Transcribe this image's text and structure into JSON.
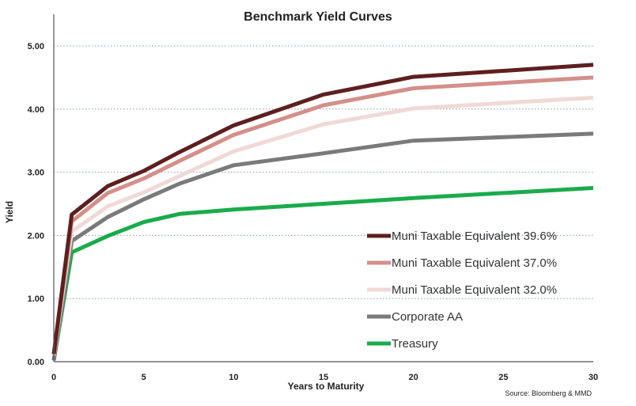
{
  "chart_data": {
    "type": "line",
    "title": "Benchmark Yield Curves",
    "xlabel": "Years to Maturity",
    "ylabel": "Yield",
    "source": "Source: Bloomberg & MMD",
    "xlim": [
      0,
      30
    ],
    "ylim": [
      0,
      5
    ],
    "xticks": [
      0,
      5,
      10,
      15,
      20,
      25,
      30
    ],
    "yticks": [
      0,
      1,
      2,
      3,
      4,
      5
    ],
    "ytick_labels": [
      "0.00",
      "1.00",
      "2.00",
      "3.00",
      "4.00",
      "5.00"
    ],
    "grid": "horizontal dotted",
    "legend_position": "lower-right",
    "series": [
      {
        "name": "Muni Taxable Equivalent 39.6%",
        "color": "#5e1f1f",
        "x": [
          0,
          1,
          3,
          5,
          7,
          10,
          15,
          20,
          30
        ],
        "y": [
          0.12,
          2.33,
          2.78,
          3.02,
          3.32,
          3.74,
          4.23,
          4.51,
          4.7
        ]
      },
      {
        "name": "Muni Taxable Equivalent 37.0%",
        "color": "#d48f8a",
        "x": [
          0,
          1,
          3,
          5,
          7,
          10,
          15,
          20,
          30
        ],
        "y": [
          0.12,
          2.22,
          2.67,
          2.9,
          3.18,
          3.59,
          4.06,
          4.33,
          4.5
        ]
      },
      {
        "name": "Muni Taxable Equivalent 32.0%",
        "color": "#f0d9d6",
        "x": [
          0,
          1,
          3,
          5,
          7,
          10,
          15,
          20,
          30
        ],
        "y": [
          0.1,
          2.06,
          2.46,
          2.68,
          2.94,
          3.33,
          3.76,
          4.01,
          4.18
        ]
      },
      {
        "name": "Corporate AA",
        "color": "#7a7a7a",
        "x": [
          0,
          1,
          3,
          5,
          7,
          10,
          15,
          20,
          30
        ],
        "y": [
          0.02,
          1.91,
          2.29,
          2.57,
          2.82,
          3.11,
          3.3,
          3.5,
          3.61
        ]
      },
      {
        "name": "Treasury",
        "color": "#1aab4b",
        "x": [
          0,
          1,
          3,
          5,
          7,
          10,
          15,
          20,
          30
        ],
        "y": [
          0.02,
          1.73,
          1.99,
          2.21,
          2.34,
          2.41,
          2.5,
          2.59,
          2.75
        ]
      }
    ]
  }
}
